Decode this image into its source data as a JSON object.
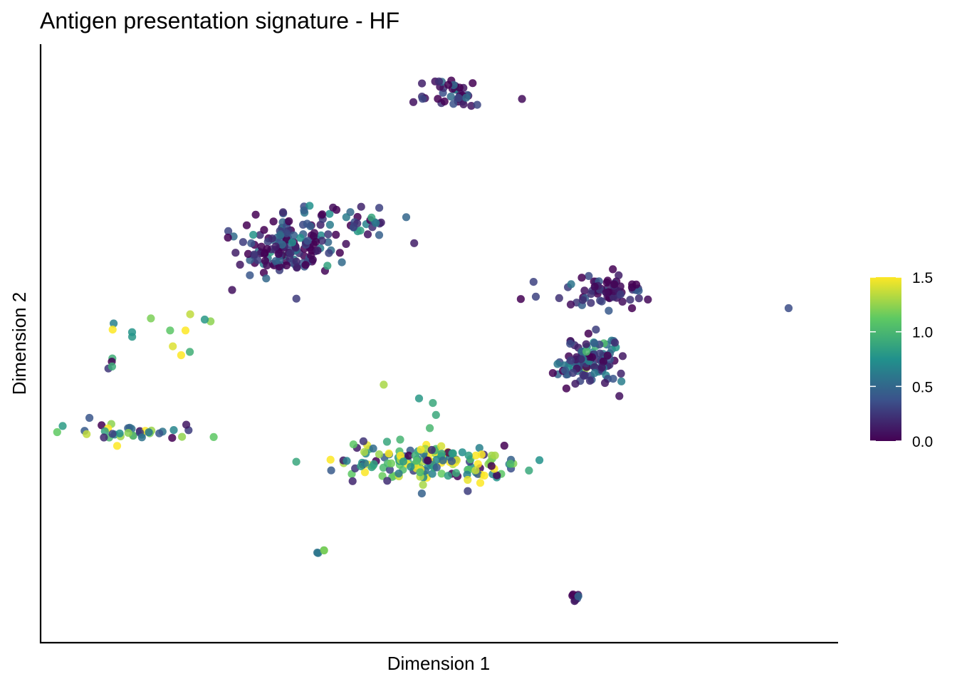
{
  "chart_data": {
    "type": "scatter",
    "title": "Antigen presentation signature - HF",
    "xlabel": "Dimension 1",
    "ylabel": "Dimension 2",
    "xlim": [
      0,
      100
    ],
    "ylim": [
      0,
      100
    ],
    "x_ticks_shown": false,
    "y_ticks_shown": false,
    "grid": false,
    "colorbar": {
      "ticks": [
        "0.0",
        "0.5",
        "1.0",
        "1.5"
      ],
      "tick_values": [
        0,
        0.5,
        1.0,
        1.5
      ],
      "range": [
        0,
        1.5
      ],
      "colormap": "viridis",
      "colors": [
        "#440154",
        "#3b528b",
        "#21918c",
        "#5ec962",
        "#fde725"
      ],
      "placement": "right"
    },
    "clusters": [
      {
        "cx": 52.0,
        "cy": 94.0,
        "sx": 2.0,
        "sy": 1.3,
        "n": 40,
        "vmean": 0.15,
        "vspread": 0.25
      },
      {
        "cx": 30.0,
        "cy": 67.0,
        "sx": 3.2,
        "sy": 2.6,
        "n": 150,
        "vmean": 0.25,
        "vspread": 0.3
      },
      {
        "cx": 39.0,
        "cy": 71.0,
        "sx": 3.5,
        "sy": 1.3,
        "n": 35,
        "vmean": 0.3,
        "vspread": 0.3
      },
      {
        "cx": 70.0,
        "cy": 47.0,
        "sx": 2.0,
        "sy": 2.3,
        "n": 110,
        "vmean": 0.3,
        "vspread": 0.3
      },
      {
        "cx": 72.0,
        "cy": 59.0,
        "sx": 2.8,
        "sy": 1.3,
        "n": 70,
        "vmean": 0.1,
        "vspread": 0.2
      },
      {
        "cx": 49.0,
        "cy": 29.0,
        "sx": 6.0,
        "sy": 1.8,
        "n": 170,
        "vmean": 0.9,
        "vspread": 0.55
      },
      {
        "cx": 10.5,
        "cy": 34.5,
        "sx": 4.5,
        "sy": 0.8,
        "n": 35,
        "vmean": 0.7,
        "vspread": 0.5
      },
      {
        "cx": 14.0,
        "cy": 52.0,
        "sx": 5.0,
        "sy": 1.5,
        "n": 10,
        "vmean": 1.1,
        "vspread": 0.35
      },
      {
        "cx": 7.5,
        "cy": 46.5,
        "sx": 0.2,
        "sy": 0.7,
        "n": 4,
        "vmean": 0.6,
        "vspread": 0.6
      },
      {
        "cx": 34.5,
        "cy": 13.5,
        "sx": 0.6,
        "sy": 0.4,
        "n": 4,
        "vmean": 1.0,
        "vspread": 0.4
      },
      {
        "cx": 68.5,
        "cy": 5.8,
        "sx": 0.5,
        "sy": 0.4,
        "n": 8,
        "vmean": 0.15,
        "vspread": 0.2
      }
    ],
    "points": [
      {
        "x": 60.9,
        "y": 92.9,
        "v": 0.05
      },
      {
        "x": 62.4,
        "y": 60.9,
        "v": 0.3
      },
      {
        "x": 62.7,
        "y": 58.3,
        "v": 0.3
      },
      {
        "x": 95.6,
        "y": 56.3,
        "v": 0.35
      },
      {
        "x": 71.3,
        "y": 45.9,
        "v": 0.1
      },
      {
        "x": 71.7,
        "y": 43.2,
        "v": 0.1
      },
      {
        "x": 74.0,
        "y": 47.9,
        "v": 0.1
      },
      {
        "x": 36.3,
        "y": 73.9,
        "v": 0.05
      },
      {
        "x": 24.2,
        "y": 63.9,
        "v": 0.1
      },
      {
        "x": 27.6,
        "y": 61.5,
        "v": 0.5
      },
      {
        "x": 19.6,
        "y": 54.3,
        "v": 0.8
      },
      {
        "x": 17.1,
        "y": 52.4,
        "v": 1.5
      },
      {
        "x": 15.1,
        "y": 52.4,
        "v": 1.1
      },
      {
        "x": 4.6,
        "y": 37.1,
        "v": 0.4
      },
      {
        "x": 17.2,
        "y": 35.9,
        "v": 0.1
      },
      {
        "x": 8.2,
        "y": 32.2,
        "v": 1.5
      },
      {
        "x": 42.9,
        "y": 42.9,
        "v": 1.3
      },
      {
        "x": 47.5,
        "y": 40.5,
        "v": 0.8
      },
      {
        "x": 49.3,
        "y": 39.7,
        "v": 0.9
      },
      {
        "x": 49.7,
        "y": 37.6,
        "v": 0.9
      },
      {
        "x": 48.9,
        "y": 35.3,
        "v": 1.0
      }
    ]
  }
}
